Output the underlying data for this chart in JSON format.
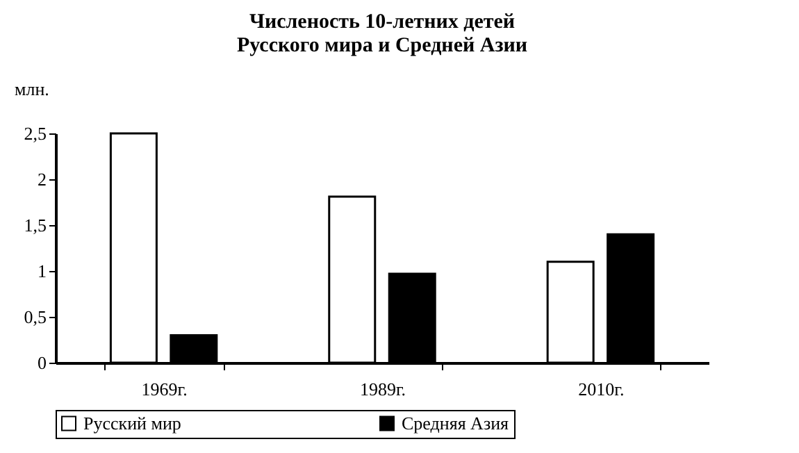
{
  "chart_data": {
    "type": "bar",
    "title": "Численость 10-летних детей\nРусского мира и Средней Азии",
    "ylabel": "млн.",
    "categories": [
      "1969г.",
      "1989г.",
      "2010г."
    ],
    "series": [
      {
        "name": "Русский мир",
        "color": "#ffffff",
        "values": [
          2.5,
          1.81,
          1.1
        ]
      },
      {
        "name": "Средняя Азия",
        "color": "#000000",
        "values": [
          0.3,
          0.97,
          1.4
        ]
      }
    ],
    "ylim": [
      0,
      2.5
    ],
    "yticks": [
      0,
      {
        "value": 0.5,
        "label": "0,5"
      },
      1,
      {
        "value": 1.5,
        "label": "1,5"
      },
      2,
      {
        "value": 2.5,
        "label": "2,5"
      }
    ],
    "grid": false,
    "legend": "bottom"
  }
}
